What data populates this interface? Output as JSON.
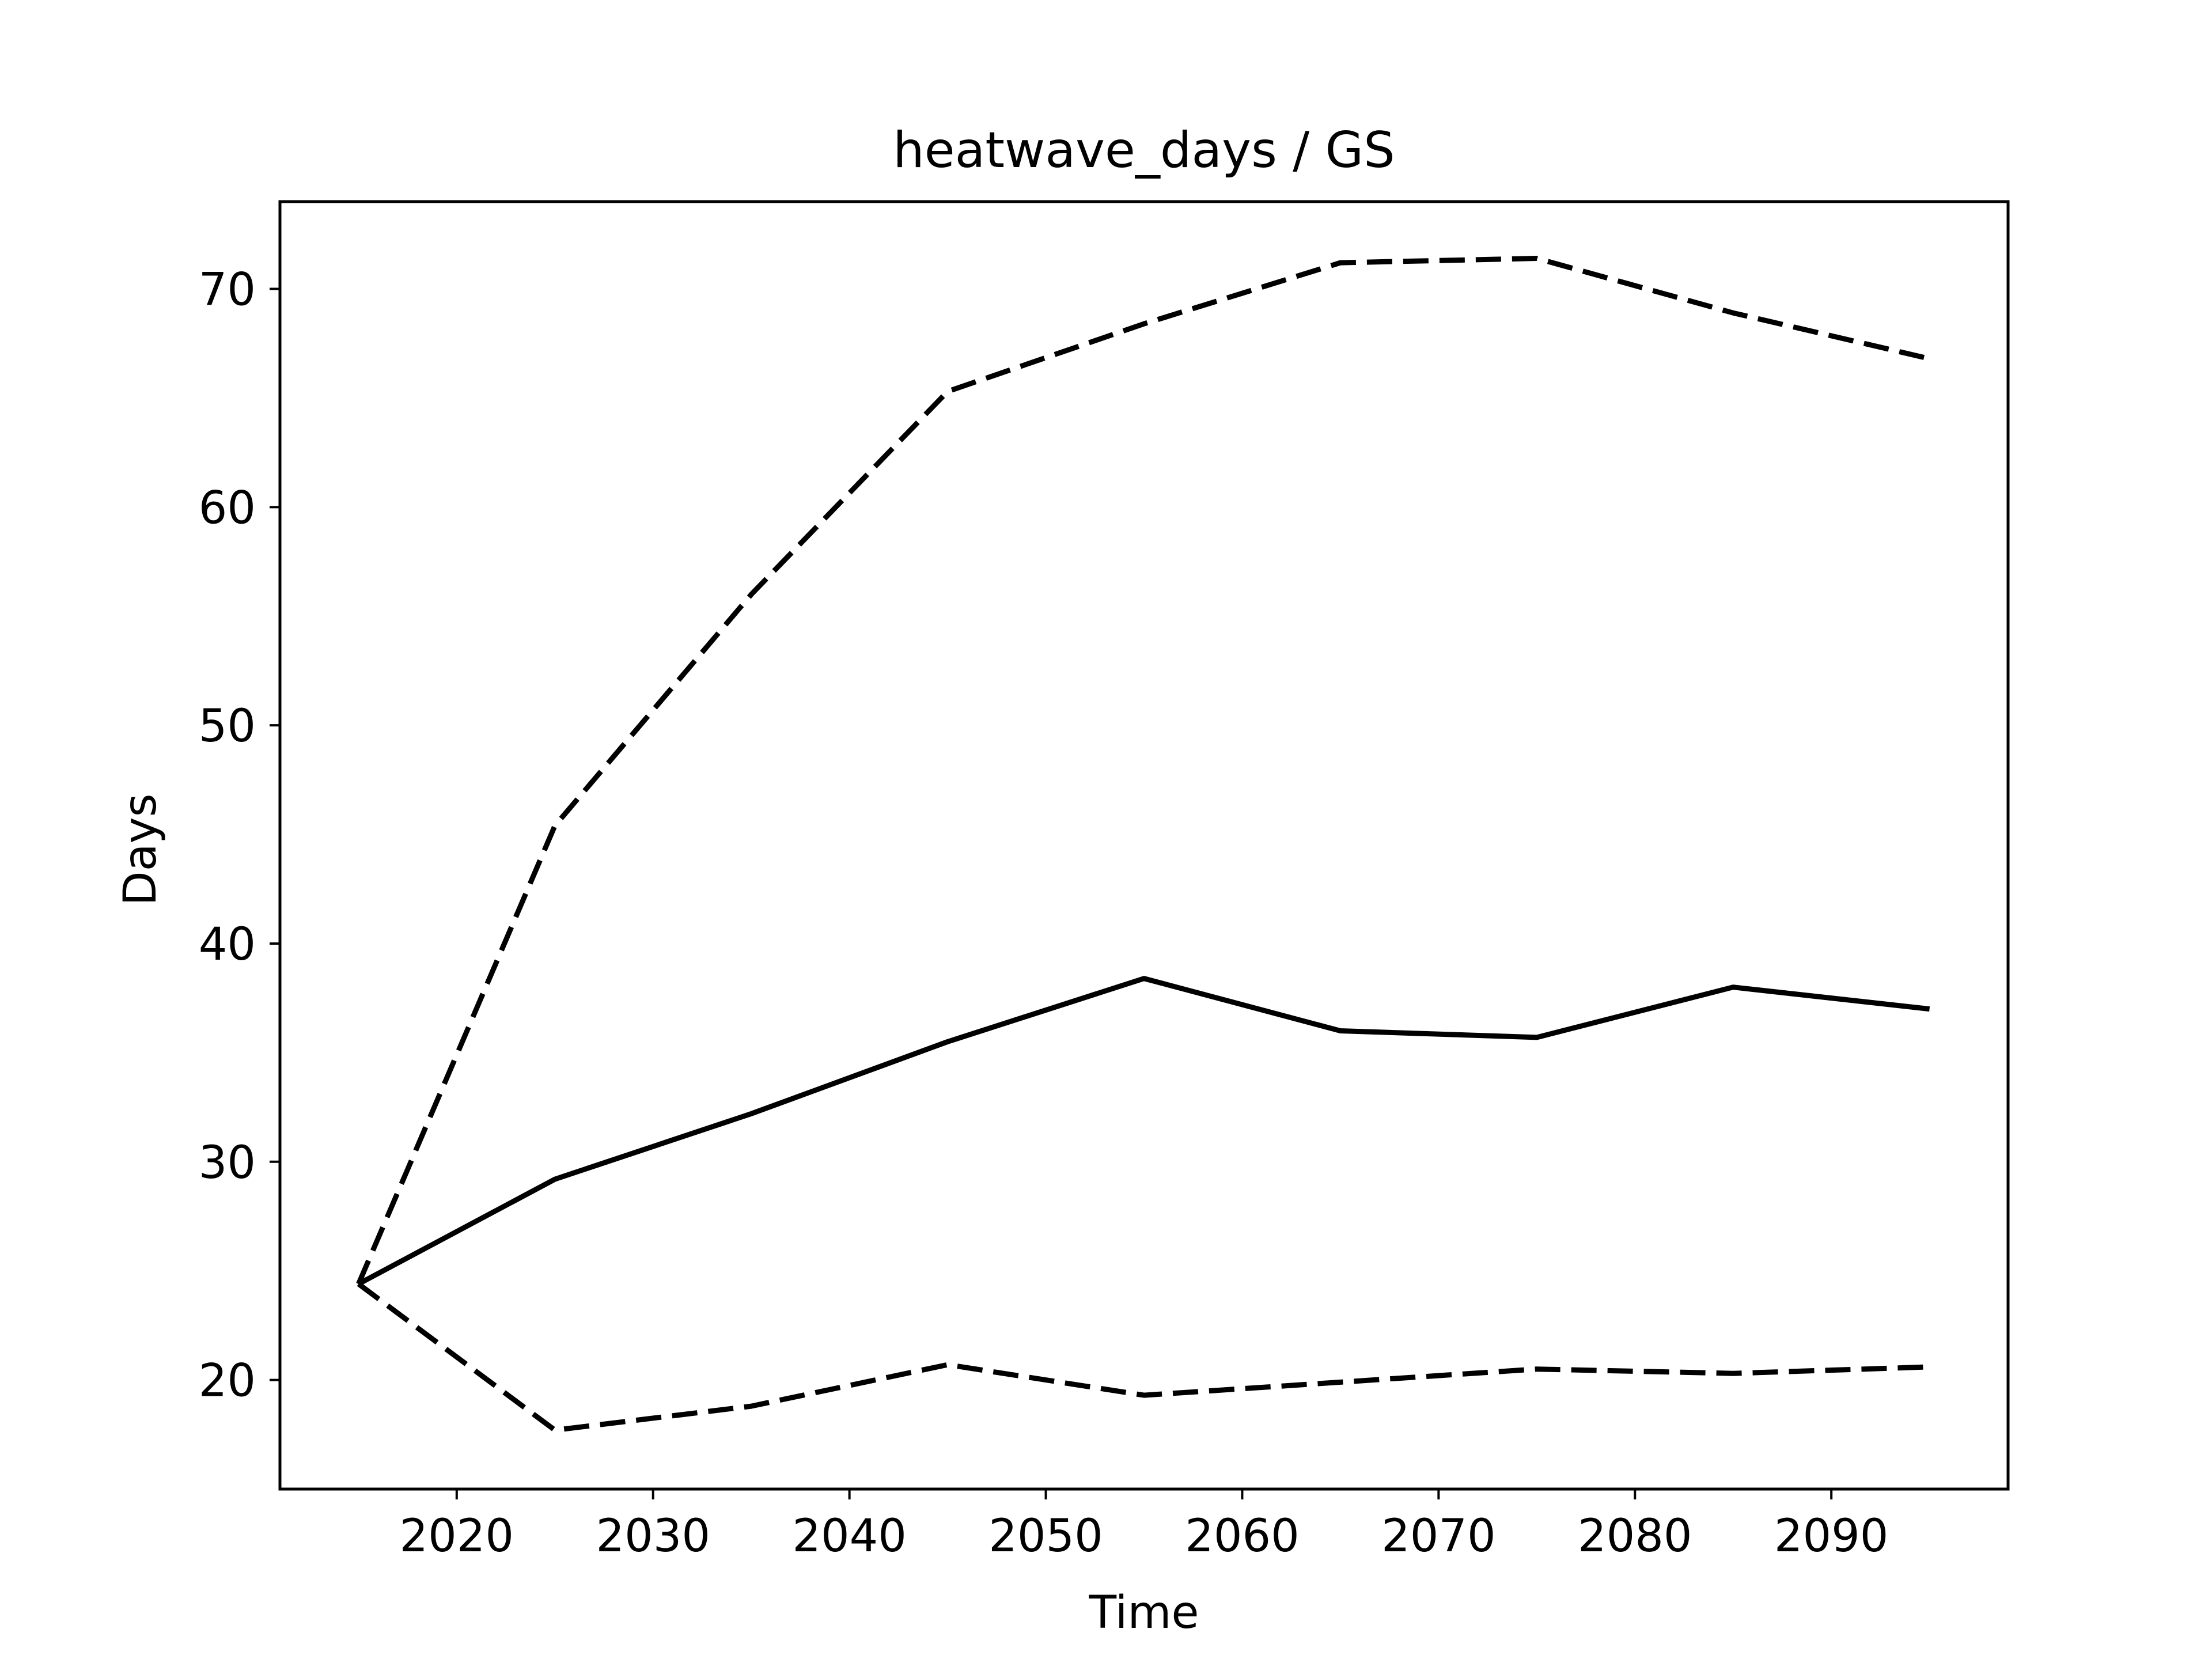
{
  "chart_data": {
    "type": "line",
    "title": "heatwave_days / GS",
    "xlabel": "Time",
    "ylabel": "Days",
    "xlim": [
      2011,
      2099
    ],
    "ylim": [
      15,
      74
    ],
    "xticks": [
      2020,
      2030,
      2040,
      2050,
      2060,
      2070,
      2080,
      2090
    ],
    "yticks": [
      20,
      30,
      40,
      50,
      60,
      70
    ],
    "x": [
      2015,
      2025,
      2035,
      2045,
      2055,
      2065,
      2075,
      2085,
      2095
    ],
    "series": [
      {
        "style": "solid",
        "color": "#000000",
        "values": [
          24.4,
          29.2,
          32.2,
          35.5,
          38.4,
          36.0,
          35.7,
          38.0,
          37.0
        ]
      },
      {
        "style": "dashed",
        "color": "#000000",
        "values": [
          24.4,
          45.4,
          56.0,
          65.3,
          68.4,
          71.2,
          71.4,
          68.9,
          66.8
        ]
      },
      {
        "style": "dashed",
        "color": "#000000",
        "values": [
          24.4,
          17.7,
          18.8,
          20.7,
          19.3,
          19.9,
          20.5,
          20.3,
          20.6
        ]
      }
    ],
    "grid": false,
    "legend": "none"
  }
}
